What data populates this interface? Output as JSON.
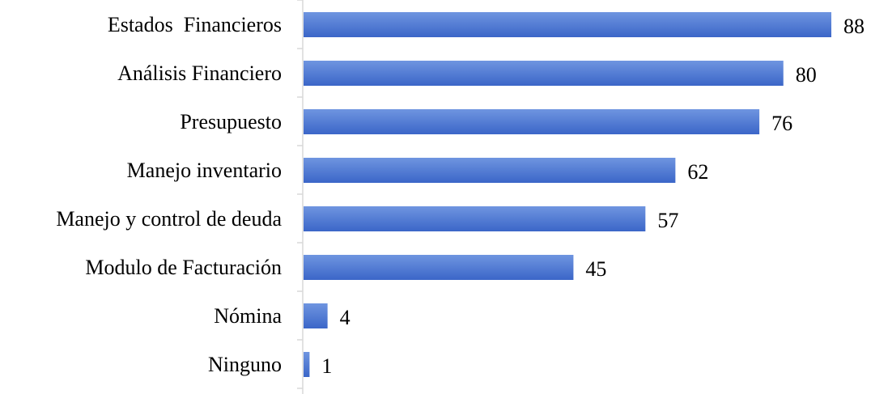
{
  "chart_data": {
    "type": "bar",
    "orientation": "horizontal",
    "categories": [
      "Estados  Financieros",
      "Análisis Financiero",
      "Presupuesto",
      "Manejo inventario",
      "Manejo y control de deuda",
      "Modulo de Facturación",
      "Nómina",
      "Ninguno"
    ],
    "values": [
      88,
      80,
      76,
      62,
      57,
      45,
      4,
      1
    ],
    "xlim": [
      0,
      88
    ],
    "grid": false,
    "legend": "none",
    "colors": {
      "bar_light": "#6f95e0",
      "bar_dark": "#3b66c8",
      "axis": "#d9d9d9"
    }
  }
}
